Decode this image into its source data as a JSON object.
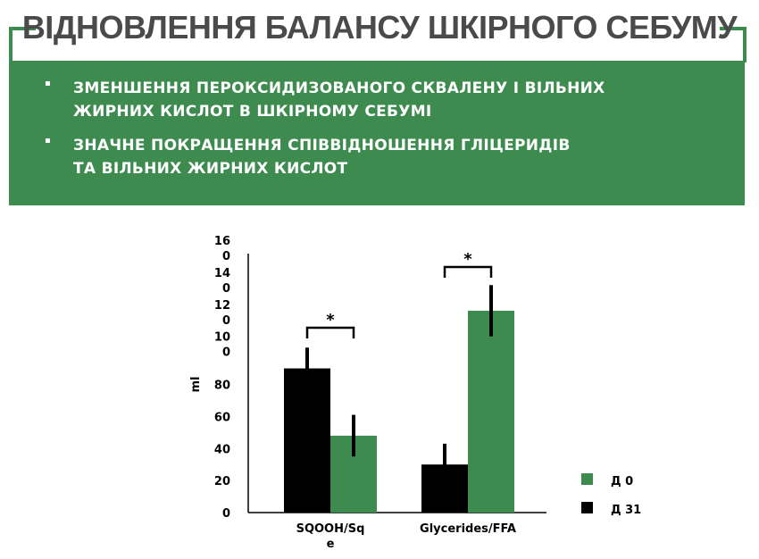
{
  "header": {
    "title": "ВІДНОВЛЕННЯ БАЛАНСУ ШКІРНОГО СЕБУМУ",
    "accent_color": "#3d8b4f"
  },
  "bullets": [
    {
      "marker": "▪",
      "text": "ЗМЕНШЕННЯ ПЕРОКСИДИЗОВАНОГО СКВАЛЕНУ І ВІЛЬНИХ\nЖИРНИХ КИСЛОТ В ШКІРНОМУ СЕБУМІ"
    },
    {
      "marker": "▪",
      "text": "ЗНАЧНЕ ПОКРАЩЕННЯ СПІВВІДНОШЕННЯ ГЛІЦЕРИДІВ\nТА ВІЛЬНИХ ЖИРНИХ КИСЛОТ"
    }
  ],
  "chart_data": {
    "type": "bar",
    "categories": [
      "SQOOH/Sq\ne",
      "Glycerides/FFA"
    ],
    "series": [
      {
        "name": "Д 31",
        "color": "#000000",
        "values": [
          90,
          30
        ],
        "errors": [
          13,
          13
        ]
      },
      {
        "name": "Д 0",
        "color": "#3d8b4f",
        "values": [
          48,
          126
        ],
        "errors": [
          13,
          16
        ]
      }
    ],
    "ylabel": "ml",
    "ylim": [
      0,
      160
    ],
    "ytick_labels": [
      "0",
      "20",
      "40",
      "60",
      "80",
      "10\n0",
      "12\n0",
      "14\n0",
      "16\n0"
    ],
    "significance": [
      "*",
      "*"
    ],
    "legend_entries": [
      {
        "label": "Д 0",
        "color": "#3d8b4f"
      },
      {
        "label": "Д 31",
        "color": "#000000"
      }
    ],
    "legend_position": "right",
    "grid": false
  }
}
